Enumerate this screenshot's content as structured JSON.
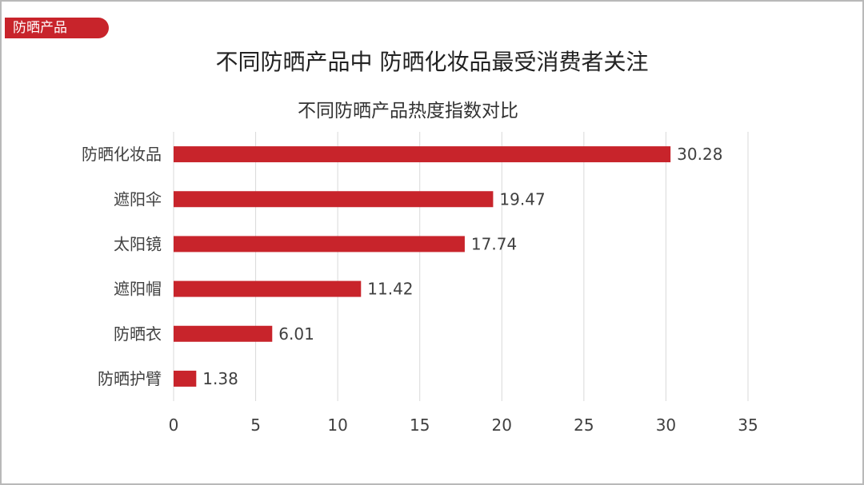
{
  "tag": {
    "label": "防晒产品"
  },
  "main_title": "不同防晒产品中 防晒化妆品最受消费者关注",
  "colors": {
    "accent": "#c8242b",
    "grid": "#d9d9d9",
    "text": "#404040"
  },
  "chart_data": {
    "type": "bar",
    "orientation": "horizontal",
    "title": "不同防晒产品热度指数对比",
    "categories": [
      "防晒化妆品",
      "遮阳伞",
      "太阳镜",
      "遮阳帽",
      "防晒衣",
      "防晒护臂"
    ],
    "values": [
      30.28,
      19.47,
      17.74,
      11.42,
      6.01,
      1.38
    ],
    "value_labels": [
      "30.28",
      "19.47",
      "17.74",
      "11.42",
      "6.01",
      "1.38"
    ],
    "xlim": [
      0,
      35
    ],
    "xticks": [
      0,
      5,
      10,
      15,
      20,
      25,
      30,
      35
    ],
    "xtick_labels": [
      "0",
      "5",
      "10",
      "15",
      "20",
      "25",
      "30",
      "35"
    ],
    "xlabel": "",
    "ylabel": "",
    "grid": "vertical",
    "legend": "none"
  }
}
